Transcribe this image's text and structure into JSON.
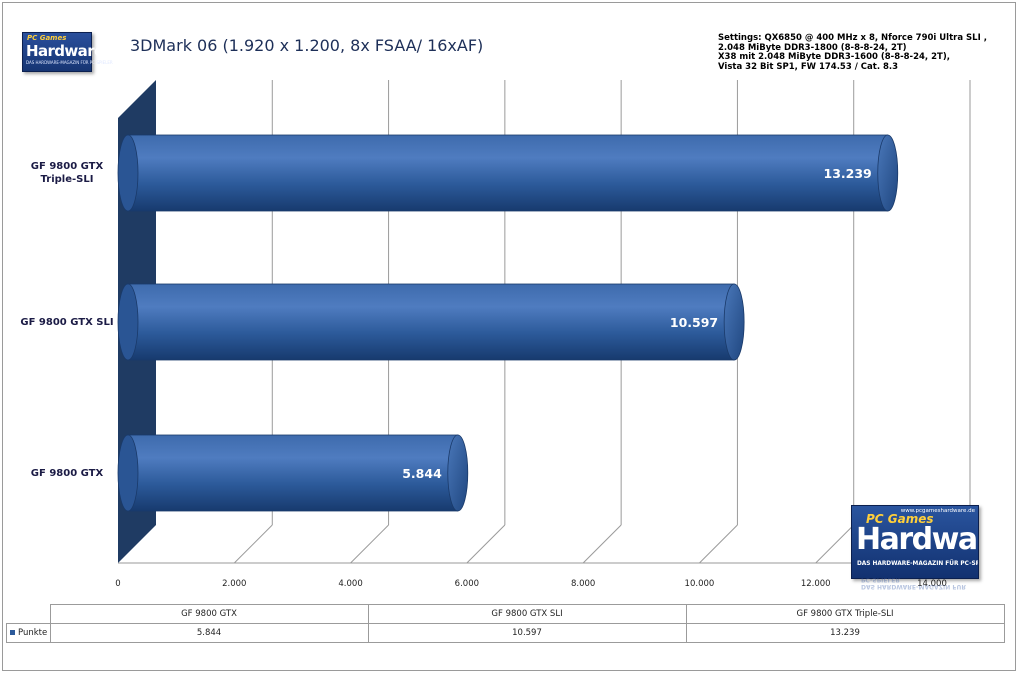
{
  "logo_small": {
    "top": "PC Games",
    "main": "Hardware",
    "sub": "DAS HARDWARE-MAGAZIN FÜR PC-SPIELER"
  },
  "logo_big": {
    "url": "www.pcgameshardware.de",
    "top": "PC Games",
    "main": "Hardware",
    "sub": "DAS HARDWARE-MAGAZIN FÜR PC-SPIELER"
  },
  "settings": [
    "Settings: QX6850 @ 400 MHz x 8, Nforce 790i Ultra SLI ,",
    " 2.048 MiByte DDR3-1800 (8-8-8-24, 2T)",
    "X38 mit 2.048 MiByte DDR3-1600 (8-8-8-24, 2T),",
    "Vista 32 Bit SP1, FW 174.53 / Cat. 8.3"
  ],
  "colors": {
    "bar": "#2c5a9a",
    "bar_dark": "#1c3f73",
    "wall": "#1f3b63",
    "grid": "#9a9a9a"
  },
  "chart_data": {
    "type": "bar",
    "orientation": "horizontal",
    "title": "3DMark 06 (1.920 x 1.200, 8x FSAA/ 16xAF)",
    "categories_display": [
      "GF 9800  GTX\nTriple-SLI",
      "GF 9800  GTX SLI",
      "GF 9800  GTX"
    ],
    "table_categories": [
      "GF 9800 GTX",
      "GF 9800 GTX SLI",
      "GF 9800 GTX Triple-SLI"
    ],
    "series": [
      {
        "name": "Punkte",
        "values": [
          5844,
          10597,
          13239
        ],
        "labels": [
          "5.844",
          "10.597",
          "13.239"
        ]
      }
    ],
    "xlim": [
      0,
      14000
    ],
    "xticks": [
      0,
      2000,
      4000,
      6000,
      8000,
      10000,
      12000,
      14000
    ],
    "xtick_labels": [
      "0",
      "2.000",
      "4.000",
      "6.000",
      "8.000",
      "10.000",
      "12.000",
      "14.000"
    ],
    "grid": true,
    "legend": "data table"
  }
}
